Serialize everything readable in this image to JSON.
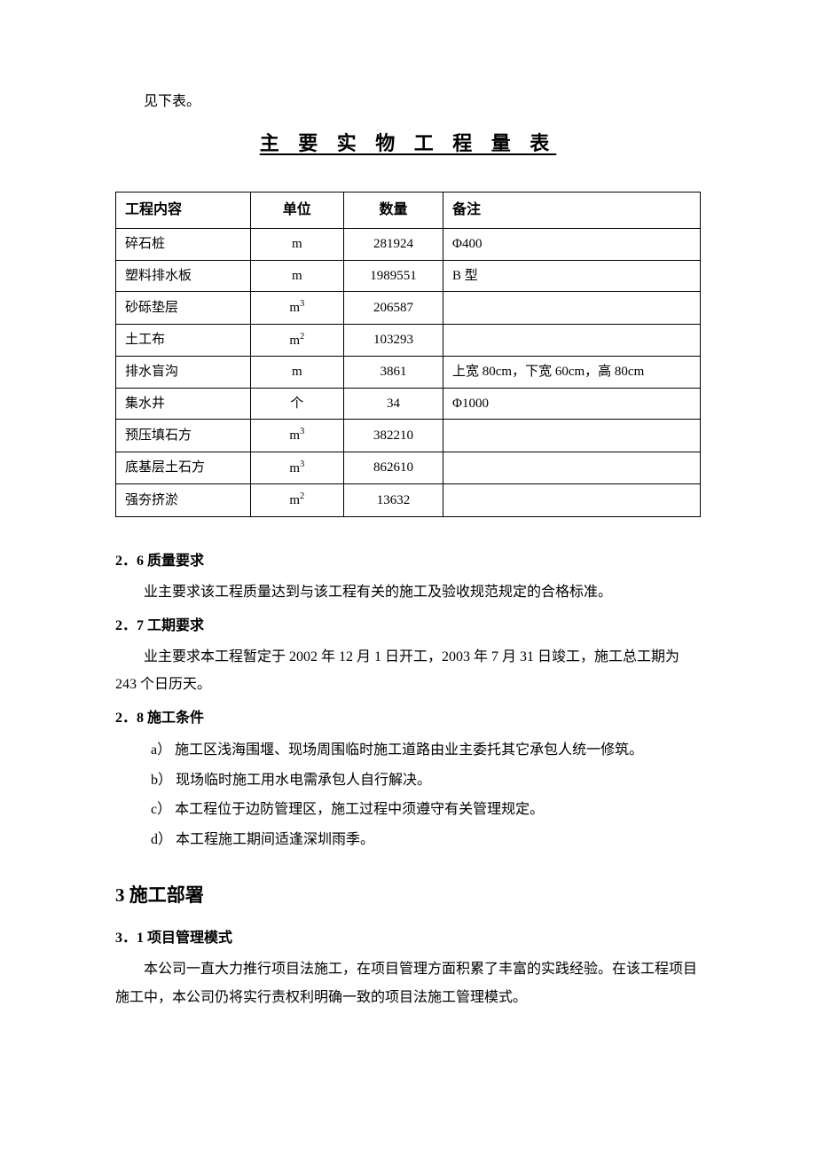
{
  "intro_text": "见下表。",
  "table_title": "主 要 实 物 工 程 量 表",
  "table": {
    "columns": [
      "工程内容",
      "单位",
      "数量",
      "备注"
    ],
    "column_widths": [
      "23%",
      "16%",
      "17%",
      "44%"
    ],
    "alignments": [
      "left",
      "center",
      "center",
      "left"
    ],
    "rows": [
      {
        "content": "碎石桩",
        "unit": "m",
        "qty": "281924",
        "remark": "Φ400"
      },
      {
        "content": "塑料排水板",
        "unit": "m",
        "qty": "1989551",
        "remark": "B 型"
      },
      {
        "content": "砂砾垫层",
        "unit": "m³",
        "qty": "206587",
        "remark": ""
      },
      {
        "content": "土工布",
        "unit": "m²",
        "qty": "103293",
        "remark": ""
      },
      {
        "content": "排水盲沟",
        "unit": "m",
        "qty": "3861",
        "remark": "上宽 80cm，下宽 60cm，高 80cm"
      },
      {
        "content": "集水井",
        "unit": "个",
        "qty": "34",
        "remark": "Φ1000"
      },
      {
        "content": "预压填石方",
        "unit": "m³",
        "qty": "382210",
        "remark": ""
      },
      {
        "content": "底基层土石方",
        "unit": "m³",
        "qty": "862610",
        "remark": ""
      },
      {
        "content": "强夯挤淤",
        "unit": "m²",
        "qty": "13632",
        "remark": ""
      }
    ]
  },
  "sections": {
    "s26": {
      "heading": "2．6 质量要求",
      "text": "业主要求该工程质量达到与该工程有关的施工及验收规范规定的合格标准。"
    },
    "s27": {
      "heading": "2．7 工期要求",
      "text": "业主要求本工程暂定于 2002 年 12 月 1 日开工，2003 年 7 月 31 日竣工，施工总工期为 243 个日历天。"
    },
    "s28": {
      "heading": "2．8 施工条件",
      "items": [
        "a）  施工区浅海围堰、现场周围临时施工道路由业主委托其它承包人统一修筑。",
        "b）  现场临时施工用水电需承包人自行解决。",
        "c）  本工程位于边防管理区，施工过程中须遵守有关管理规定。",
        "d）  本工程施工期间适逢深圳雨季。"
      ]
    }
  },
  "chapter3": {
    "heading": "3 施工部署",
    "s31": {
      "heading": "3．1 项目管理模式",
      "text": "本公司一直大力推行项目法施工，在项目管理方面积累了丰富的实践经验。在该工程项目施工中，本公司仍将实行责权利明确一致的项目法施工管理模式。"
    }
  },
  "style": {
    "background_color": "#ffffff",
    "text_color": "#000000",
    "border_color": "#000000",
    "font_family": "SimSun",
    "body_fontsize": 16,
    "table_title_fontsize": 22,
    "chapter_fontsize": 21,
    "line_height": 1.95
  }
}
